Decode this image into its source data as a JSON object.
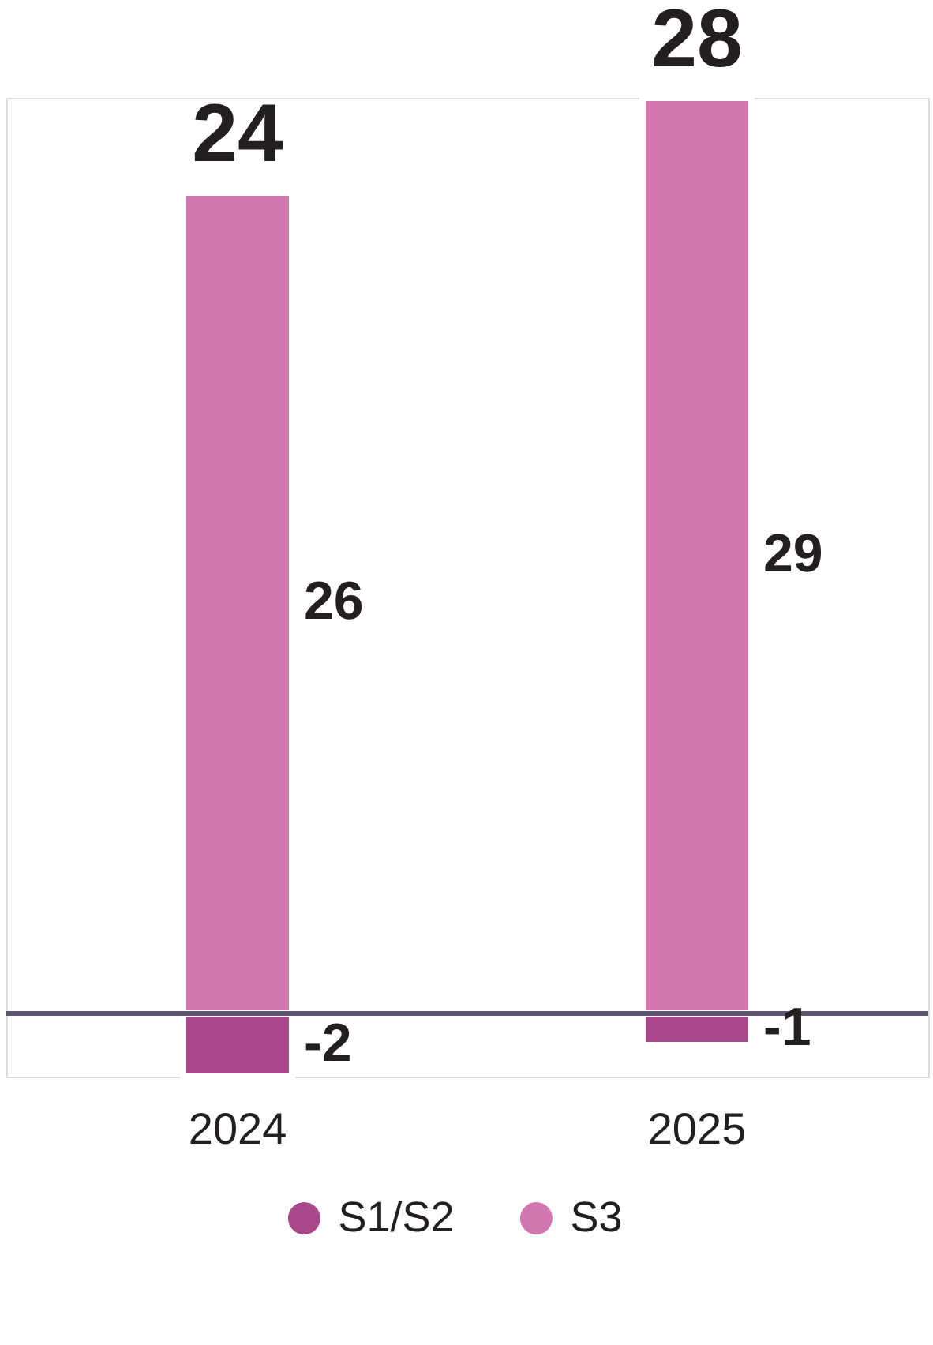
{
  "chart_data": {
    "type": "bar",
    "categories": [
      "2024",
      "2025"
    ],
    "stacked": true,
    "series": [
      {
        "name": "S1/S2",
        "color": "#a8478a",
        "values": [
          -2,
          -1
        ]
      },
      {
        "name": "S3",
        "color": "#d176ae",
        "values": [
          26,
          29
        ]
      }
    ],
    "data_labels": true,
    "totals": [
      "24",
      "28"
    ],
    "legend": "bottom",
    "tick_labels": "x"
  }
}
